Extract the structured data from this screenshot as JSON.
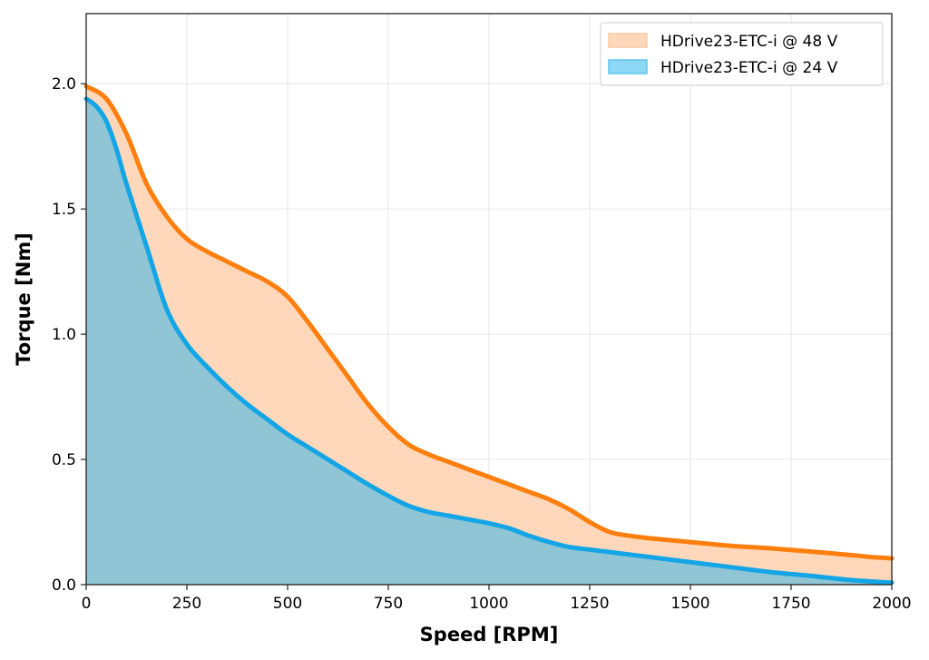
{
  "chart_data": {
    "type": "area",
    "xlabel": "Speed [RPM]",
    "ylabel": "Torque [Nm]",
    "xlim": [
      0,
      2000
    ],
    "ylim": [
      0,
      2.28
    ],
    "xticks": [
      0,
      250,
      500,
      750,
      1000,
      1250,
      1500,
      1750,
      2000
    ],
    "yticks": [
      0.0,
      0.5,
      1.0,
      1.5,
      2.0
    ],
    "grid": true,
    "legend_position": "top-right",
    "series": [
      {
        "name": "HDrive23-ETC-i @ 48 V",
        "color": "#ff7f0e",
        "fill_color": "#ffd8bb",
        "x": [
          0,
          50,
          100,
          150,
          200,
          250,
          300,
          350,
          400,
          450,
          500,
          550,
          600,
          650,
          700,
          750,
          800,
          850,
          900,
          950,
          1000,
          1050,
          1100,
          1150,
          1200,
          1250,
          1300,
          1350,
          1400,
          1500,
          1600,
          1700,
          1800,
          1900,
          1950,
          2000
        ],
        "values": [
          1.99,
          1.94,
          1.8,
          1.6,
          1.47,
          1.38,
          1.33,
          1.29,
          1.25,
          1.21,
          1.15,
          1.05,
          0.94,
          0.83,
          0.72,
          0.63,
          0.56,
          0.52,
          0.49,
          0.46,
          0.43,
          0.4,
          0.37,
          0.34,
          0.3,
          0.25,
          0.21,
          0.195,
          0.185,
          0.17,
          0.155,
          0.145,
          0.132,
          0.118,
          0.11,
          0.105
        ]
      },
      {
        "name": "HDrive23-ETC-i @ 24 V",
        "color": "#13a5e5",
        "fill_color": "#8fc5d4",
        "x": [
          0,
          25,
          50,
          75,
          100,
          150,
          200,
          250,
          300,
          350,
          400,
          450,
          500,
          550,
          600,
          650,
          700,
          750,
          800,
          850,
          900,
          950,
          1000,
          1050,
          1100,
          1150,
          1200,
          1250,
          1300,
          1400,
          1500,
          1600,
          1700,
          1800,
          1900,
          2000
        ],
        "values": [
          1.94,
          1.91,
          1.85,
          1.74,
          1.6,
          1.35,
          1.1,
          0.96,
          0.87,
          0.79,
          0.72,
          0.66,
          0.6,
          0.55,
          0.5,
          0.45,
          0.4,
          0.355,
          0.315,
          0.29,
          0.275,
          0.26,
          0.245,
          0.225,
          0.195,
          0.17,
          0.15,
          0.14,
          0.13,
          0.11,
          0.09,
          0.07,
          0.05,
          0.035,
          0.018,
          0.008
        ]
      }
    ]
  }
}
